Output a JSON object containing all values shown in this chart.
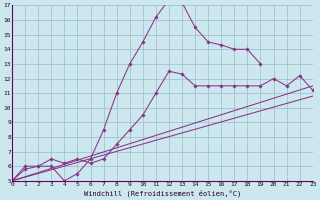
{
  "xlabel": "Windchill (Refroidissement éolien,°C)",
  "bg_color": "#cce8ee",
  "grid_color": "#99bbc9",
  "line_color": "#883388",
  "xmin": 0,
  "xmax": 23,
  "ymin": 5,
  "ymax": 17,
  "series1_x": [
    0,
    1,
    2,
    3,
    4,
    5,
    6,
    7,
    8,
    9,
    10,
    11,
    12,
    13,
    14,
    15,
    16,
    17,
    18,
    19
  ],
  "series1_y": [
    5.0,
    6.0,
    6.0,
    6.0,
    5.0,
    5.5,
    6.5,
    8.5,
    11.0,
    13.0,
    14.5,
    16.2,
    17.4,
    17.2,
    15.5,
    14.5,
    14.3,
    14.0,
    14.0,
    13.0
  ],
  "series2_x": [
    0,
    1,
    2,
    3,
    4,
    5,
    6,
    7,
    8,
    9,
    10,
    11,
    12,
    13,
    14,
    15,
    16,
    17,
    18,
    19,
    20,
    21,
    22,
    23
  ],
  "series2_y": [
    5.0,
    5.8,
    6.0,
    6.5,
    6.2,
    6.5,
    6.2,
    6.5,
    7.5,
    8.5,
    9.5,
    11.0,
    12.5,
    12.3,
    11.5,
    11.5,
    11.5,
    11.5,
    11.5,
    11.5,
    12.0,
    11.5,
    12.2,
    11.2
  ],
  "line3_x": [
    0,
    23
  ],
  "line3_y": [
    5.0,
    11.5
  ],
  "line4_x": [
    0,
    23
  ],
  "line4_y": [
    5.0,
    10.8
  ],
  "yticks": [
    5,
    6,
    7,
    8,
    9,
    10,
    11,
    12,
    13,
    14,
    15,
    16,
    17
  ],
  "xticks": [
    0,
    1,
    2,
    3,
    4,
    5,
    6,
    7,
    8,
    9,
    10,
    11,
    12,
    13,
    14,
    15,
    16,
    17,
    18,
    19,
    20,
    21,
    22,
    23
  ]
}
